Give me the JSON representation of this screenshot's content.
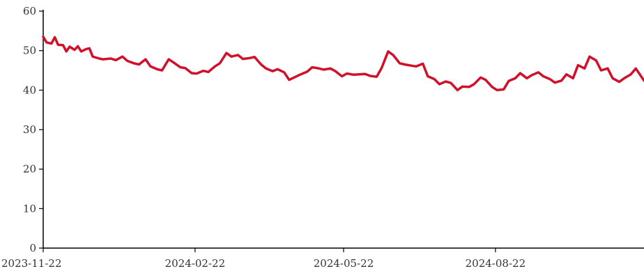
{
  "chart_data": {
    "type": "line",
    "title": "",
    "xlabel": "",
    "ylabel": "",
    "ylim": [
      0,
      60
    ],
    "y_ticks": [
      0,
      10,
      20,
      30,
      40,
      50,
      60
    ],
    "y_tick_labels": [
      "0",
      "10",
      "20",
      "30",
      "40",
      "50",
      "60"
    ],
    "x_ticks": [
      "2023-11-22",
      "2024-02-22",
      "2024-05-22",
      "2024-08-22"
    ],
    "xlim": [
      "2023-11-22",
      "2024-11-20"
    ],
    "grid": false,
    "legend": "none",
    "colors": {
      "line": "#d1102a",
      "axis": "#000000",
      "text": "#333333"
    },
    "series": [
      {
        "x": [
          "2023-11-22",
          "2023-11-24",
          "2023-11-27",
          "2023-11-29",
          "2023-12-01",
          "2023-12-04",
          "2023-12-06",
          "2023-12-08",
          "2023-12-11",
          "2023-12-13",
          "2023-12-15",
          "2023-12-18",
          "2023-12-20",
          "2023-12-22",
          "2023-12-26",
          "2023-12-28",
          "2024-01-02",
          "2024-01-05",
          "2024-01-09",
          "2024-01-12",
          "2024-01-16",
          "2024-01-19",
          "2024-01-23",
          "2024-01-26",
          "2024-01-30",
          "2024-02-02",
          "2024-02-06",
          "2024-02-09",
          "2024-02-13",
          "2024-02-16",
          "2024-02-20",
          "2024-02-23",
          "2024-02-27",
          "2024-03-01",
          "2024-03-05",
          "2024-03-08",
          "2024-03-12",
          "2024-03-15",
          "2024-03-19",
          "2024-03-22",
          "2024-03-26",
          "2024-03-29",
          "2024-04-02",
          "2024-04-05",
          "2024-04-09",
          "2024-04-12",
          "2024-04-16",
          "2024-04-19",
          "2024-04-23",
          "2024-04-26",
          "2024-04-30",
          "2024-05-03",
          "2024-05-07",
          "2024-05-10",
          "2024-05-14",
          "2024-05-17",
          "2024-05-21",
          "2024-05-24",
          "2024-05-28",
          "2024-05-31",
          "2024-06-04",
          "2024-06-07",
          "2024-06-11",
          "2024-06-14",
          "2024-06-18",
          "2024-06-21",
          "2024-06-25",
          "2024-06-28",
          "2024-07-02",
          "2024-07-05",
          "2024-07-09",
          "2024-07-12",
          "2024-07-16",
          "2024-07-19",
          "2024-07-23",
          "2024-07-26",
          "2024-07-30",
          "2024-08-02",
          "2024-08-06",
          "2024-08-09",
          "2024-08-13",
          "2024-08-16",
          "2024-08-20",
          "2024-08-23",
          "2024-08-27",
          "2024-08-30",
          "2024-09-03",
          "2024-09-06",
          "2024-09-10",
          "2024-09-13",
          "2024-09-17",
          "2024-09-20",
          "2024-09-24",
          "2024-09-27",
          "2024-10-01",
          "2024-10-04",
          "2024-10-08",
          "2024-10-11",
          "2024-10-15",
          "2024-10-18",
          "2024-10-22",
          "2024-10-25",
          "2024-10-29",
          "2024-11-01",
          "2024-11-05",
          "2024-11-08",
          "2024-11-12",
          "2024-11-15",
          "2024-11-20"
        ],
        "values": [
          53.5,
          52.1,
          51.8,
          53.4,
          51.5,
          51.4,
          49.8,
          51.0,
          50.2,
          51.1,
          49.8,
          50.4,
          50.6,
          48.5,
          48.0,
          47.8,
          48.0,
          47.6,
          48.5,
          47.4,
          46.8,
          46.5,
          47.8,
          46.0,
          45.3,
          45.0,
          47.8,
          47.0,
          45.8,
          45.6,
          44.3,
          44.2,
          44.9,
          44.6,
          46.0,
          46.8,
          49.4,
          48.5,
          48.9,
          47.9,
          48.1,
          48.4,
          46.5,
          45.5,
          44.8,
          45.3,
          44.5,
          42.6,
          43.4,
          44.0,
          44.7,
          45.8,
          45.5,
          45.2,
          45.5,
          44.8,
          43.5,
          44.2,
          43.9,
          44.0,
          44.1,
          43.6,
          43.4,
          45.6,
          49.8,
          48.9,
          46.8,
          46.5,
          46.2,
          46.0,
          46.7,
          43.5,
          42.8,
          41.5,
          42.2,
          41.8,
          40.0,
          40.9,
          40.8,
          41.5,
          43.2,
          42.6,
          40.8,
          40.0,
          40.2,
          42.3,
          43.0,
          44.3,
          43.0,
          43.8,
          44.5,
          43.5,
          42.8,
          41.9,
          42.4,
          44.0,
          43.0,
          46.3,
          45.5,
          48.5,
          47.5,
          45.0,
          45.5,
          43.0,
          42.1,
          43.0,
          44.0,
          45.5,
          42.4
        ]
      }
    ]
  }
}
